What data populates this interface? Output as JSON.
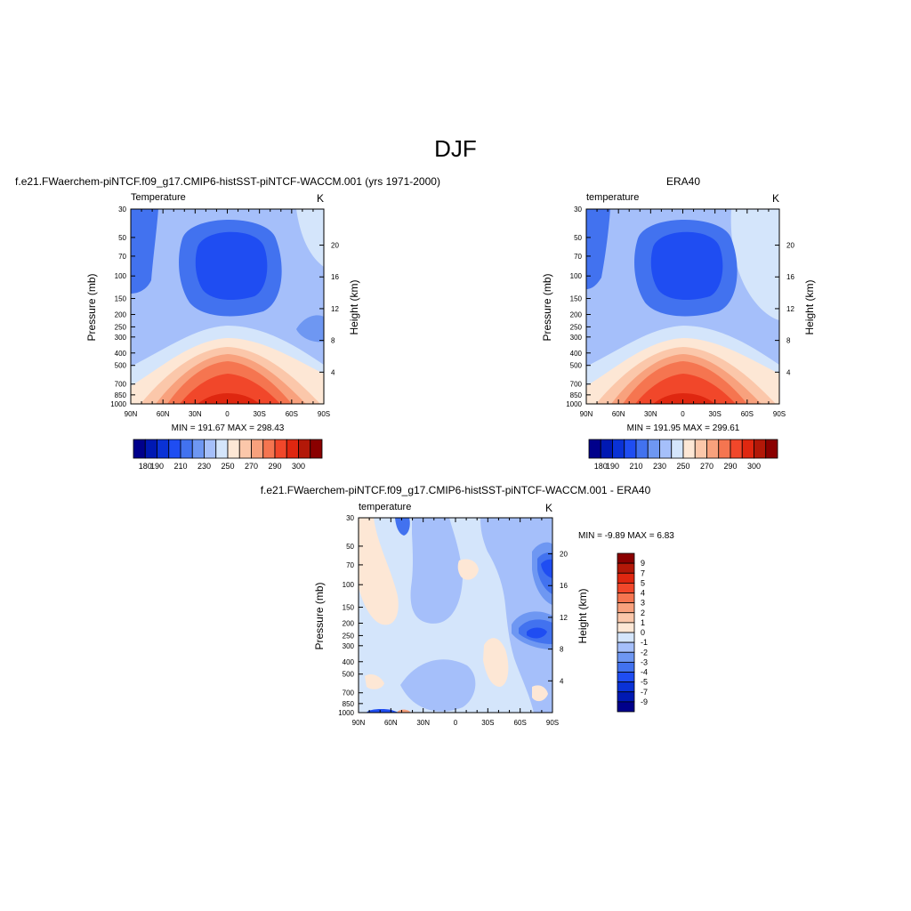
{
  "figure_title": "DJF",
  "chart_data": [
    {
      "type": "heatmap",
      "title": "f.e21.FWaerchem-piNTCF.f09_g17.CMIP6-histSST-piNTCF-WACCM.001 (yrs 1971-2000)",
      "left_label": "Temperature",
      "units": "K",
      "ylabel": "Pressure (mb)",
      "ylabel_right": "Height (km)",
      "x_ticks": [
        "90N",
        "60N",
        "30N",
        "0",
        "30S",
        "60S",
        "90S"
      ],
      "y_ticks": [
        "30",
        "50",
        "70",
        "100",
        "150",
        "200",
        "250",
        "300",
        "400",
        "500",
        "700",
        "850",
        "1000"
      ],
      "y_right_ticks": [
        "4",
        "8",
        "12",
        "16",
        "20"
      ],
      "x_range": [
        90,
        -90
      ],
      "y_range": [
        30,
        1000
      ],
      "y_scale": "log",
      "stats": "MIN = 191.67  MAX = 298.43",
      "min": 191.67,
      "max": 298.43,
      "colorbar_labels": [
        "180",
        "190",
        "210",
        "230",
        "250",
        "270",
        "290",
        "300"
      ]
    },
    {
      "type": "heatmap",
      "title": "ERA40",
      "left_label": "temperature",
      "units": "K",
      "ylabel": "Pressure (mb)",
      "ylabel_right": "Height (km)",
      "x_ticks": [
        "90N",
        "60N",
        "30N",
        "0",
        "30S",
        "60S",
        "90S"
      ],
      "y_ticks": [
        "30",
        "50",
        "70",
        "100",
        "150",
        "200",
        "250",
        "300",
        "400",
        "500",
        "700",
        "850",
        "1000"
      ],
      "y_right_ticks": [
        "4",
        "8",
        "12",
        "16",
        "20"
      ],
      "x_range": [
        90,
        -90
      ],
      "y_range": [
        30,
        1000
      ],
      "y_scale": "log",
      "stats": "MIN = 191.95  MAX = 299.61",
      "min": 191.95,
      "max": 299.61,
      "colorbar_labels": [
        "180",
        "190",
        "210",
        "230",
        "250",
        "270",
        "290",
        "300"
      ]
    },
    {
      "type": "heatmap",
      "title": "f.e21.FWaerchem-piNTCF.f09_g17.CMIP6-histSST-piNTCF-WACCM.001 - ERA40",
      "left_label": "temperature",
      "units": "K",
      "ylabel": "Pressure (mb)",
      "ylabel_right": "Height (km)",
      "x_ticks": [
        "90N",
        "60N",
        "30N",
        "0",
        "30S",
        "60S",
        "90S"
      ],
      "y_ticks": [
        "30",
        "50",
        "70",
        "100",
        "150",
        "200",
        "250",
        "300",
        "400",
        "500",
        "700",
        "850",
        "1000"
      ],
      "y_right_ticks": [
        "4",
        "8",
        "12",
        "16",
        "20"
      ],
      "x_range": [
        90,
        -90
      ],
      "y_range": [
        30,
        1000
      ],
      "y_scale": "log",
      "stats": "MIN =  -9.89  MAX =   6.83",
      "min": -9.89,
      "max": 6.83,
      "colorbar_labels": [
        "9",
        "7",
        "5",
        "4",
        "3",
        "2",
        "1",
        "0",
        "-1",
        "-2",
        "-3",
        "-4",
        "-5",
        "-7",
        "-9"
      ]
    }
  ],
  "colors": {
    "abs_scale": [
      "#00008b",
      "#0019b3",
      "#0a32d6",
      "#1f4df2",
      "#4272ef",
      "#6e97f2",
      "#a5bffa",
      "#d4e5fb",
      "#fde7d5",
      "#fbc7aa",
      "#f8a17d",
      "#f57550",
      "#f1472a",
      "#df2710",
      "#b31808",
      "#8a0000"
    ],
    "diff_scale": [
      "#00008b",
      "#0019b3",
      "#0a32d6",
      "#1f4df2",
      "#4272ef",
      "#6e97f2",
      "#a5bffa",
      "#d4e5fb",
      "#fde7d5",
      "#fbc7aa",
      "#f8a17d",
      "#f57550",
      "#f1472a",
      "#df2710",
      "#b31808",
      "#8a0000"
    ]
  }
}
